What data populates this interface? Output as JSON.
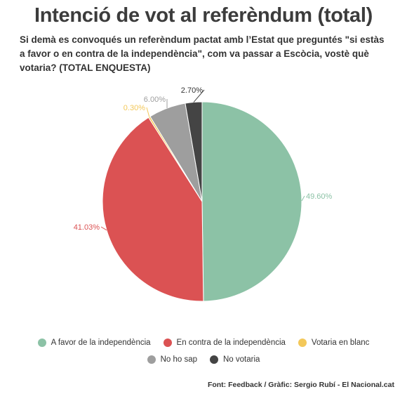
{
  "chart_data": {
    "type": "pie",
    "title": "Intenció de vot al referèndum (total)",
    "subtitle": "Si demà es convoqués un referèndum pactat amb l’Estat que preguntés \"si estàs a favor o en contra de la independència\", com va passar a Escòcia, vostè què votaria? (TOTAL ENQUESTA)",
    "slices": [
      {
        "label": "A favor de la independència",
        "value": 49.6,
        "value_label": "49.60%",
        "color": "#8cc2a6"
      },
      {
        "label": "En contra de la independència",
        "value": 41.03,
        "value_label": "41.03%",
        "color": "#db5253"
      },
      {
        "label": "Votaria en blanc",
        "value": 0.3,
        "value_label": "0.30%",
        "color": "#f3c85a"
      },
      {
        "label": "No ho sap",
        "value": 6.0,
        "value_label": "6.00%",
        "color": "#9e9e9e"
      },
      {
        "label": "No votaria",
        "value": 2.7,
        "value_label": "2.70%",
        "color": "#444444"
      }
    ],
    "legend_position": "bottom",
    "source": "Font: Feedback / Gràfic: Sergio Rubí - El Nacional.cat"
  }
}
